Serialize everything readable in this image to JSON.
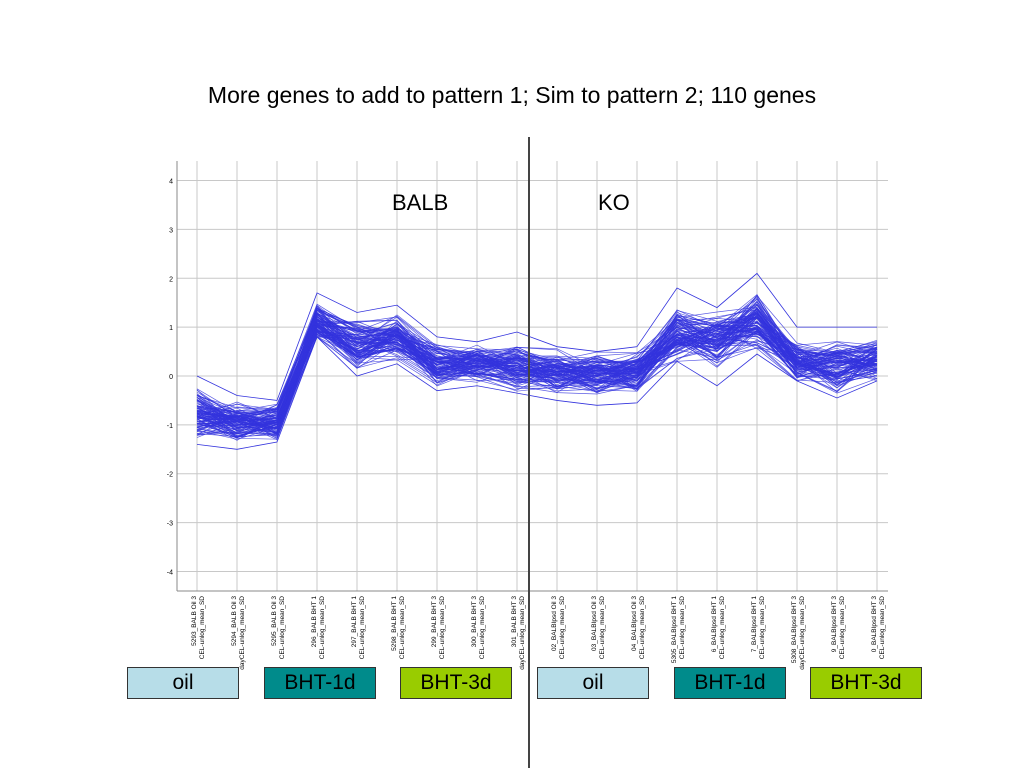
{
  "title": "More genes to add to pattern 1; Sim to pattern 2; 110 genes",
  "region_labels": {
    "left": "BALB",
    "right": "KO"
  },
  "legend_boxes": [
    {
      "label": "oil",
      "color": "#b7dde8"
    },
    {
      "label": "BHT-1d",
      "color": "#008b8b"
    },
    {
      "label": "BHT-3d",
      "color": "#99cc00"
    },
    {
      "label": "oil",
      "color": "#b7dde8"
    },
    {
      "label": "BHT-1d",
      "color": "#008b8b"
    },
    {
      "label": "BHT-3d",
      "color": "#99cc00"
    }
  ],
  "colors": {
    "series_line": "#3333dd",
    "grid": "#c8c8c8"
  },
  "chart_data": {
    "type": "line",
    "ylim": [
      -4.4,
      4.4
    ],
    "yticks": [
      "4",
      "3",
      "2",
      "1",
      "0",
      "-1",
      "-2",
      "-3",
      "-4"
    ],
    "grid": true,
    "series_count": 110,
    "categories": [
      "5293_BALB Oil 3 CEL-unlog_mean_SD",
      "5294_BALB Oil 3 dayCEL-unlog_mean_SD",
      "5295_BALB Oil 3 CEL-unlog_mean_SD",
      "296_BALB BHT 1 CEL-unlog_mean_SD",
      "297_BALB BHT 1 CEL-unlog_mean_SD",
      "5298_BALB BHT 1 CEL-unlog_mean_SD",
      "299_BALB BHT 3 CEL-unlog_mean_SD",
      "300_BALB BHT 3 CEL-unlog_mean_SD",
      "301_BALB BHT 3 dayCEL-unlog_mean_SD",
      "02_BALBIpsd Oil 3 CEL-unlog_mean_SD",
      "03_BALBIpsd Oil 3 CEL-unlog_mean_SD",
      "04_BALBIpsd Oil 3 CEL-unlog_mean_SD",
      "5305_BALBIpsd BHT 1 CEL-unlog_mean_SD",
      "6_BALBIpsd BHT 1 CEL-unlog_mean_SD",
      "7_BALBIpsd BHT 1 CEL-unlog_mean_SD",
      "5308_BALBIpsd BHT 3 dayCEL-unlog_mean_SD",
      "9_BALBIpsd BHT 3 CEL-unlog_mean_SD",
      "0_BALBIpsd BHT 3 CEL-unlog_mean_SD"
    ],
    "mean_profile": [
      -0.75,
      -0.95,
      -0.95,
      1.1,
      0.65,
      0.8,
      0.25,
      0.25,
      0.2,
      0.1,
      0.05,
      0.05,
      0.85,
      0.75,
      1.1,
      0.3,
      0.2,
      0.35
    ],
    "upper_envelope": [
      0.0,
      -0.4,
      -0.5,
      1.7,
      1.3,
      1.45,
      0.8,
      0.7,
      0.9,
      0.6,
      0.5,
      0.6,
      1.8,
      1.4,
      2.1,
      1.0,
      1.0,
      1.0
    ],
    "lower_envelope": [
      -1.4,
      -1.5,
      -1.35,
      0.8,
      0.0,
      0.25,
      -0.3,
      -0.2,
      -0.35,
      -0.5,
      -0.6,
      -0.55,
      0.3,
      -0.2,
      0.45,
      -0.1,
      -0.45,
      -0.1
    ]
  }
}
